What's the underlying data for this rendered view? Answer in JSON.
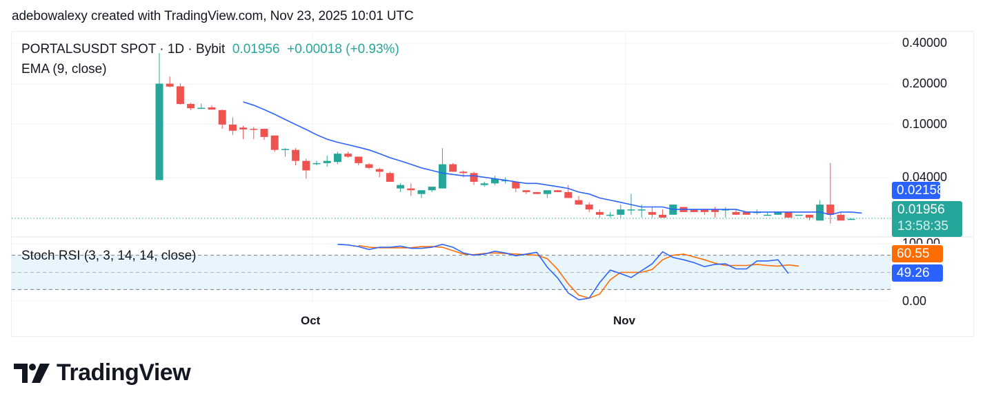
{
  "credit": "adebowalexy created with TradingView.com, Nov 23, 2025 10:01 UTC",
  "legend": {
    "symbol": "PORTALSUSDT SPOT · 1D · Bybit",
    "price": "0.01956",
    "change": "+0.00018 (+0.93%)",
    "ema": "EMA (9, close)",
    "stoch": "Stoch RSI (3, 3, 14, 14, close)"
  },
  "price_axis": [
    "0.40000",
    "0.20000",
    "0.10000",
    "0.04000"
  ],
  "badges": {
    "ema_value": "0.02158",
    "last_price": "0.01956",
    "countdown": "13:58:35",
    "stoch_d": "60.55",
    "stoch_k": "49.26"
  },
  "stoch_axis": [
    "100.00",
    "0.00"
  ],
  "time_axis": [
    "Oct",
    "Nov"
  ],
  "logo": "TradingView",
  "colors": {
    "up": "#26a69a",
    "down": "#ef5350",
    "ema": "#2962ff",
    "stoch_k": "#2962ff",
    "stoch_d": "#ff6d00",
    "band": "#e3f2fd"
  },
  "chart_data": [
    {
      "type": "candlestick",
      "title": "PORTALSUSDT SPOT · 1D · Bybit",
      "scale": "log",
      "ylim": [
        0.017,
        0.45
      ],
      "y_ticks": [
        0.4,
        0.2,
        0.1,
        0.04
      ],
      "x_ticks": [
        "Oct",
        "Nov"
      ],
      "last": 0.01956,
      "change": 0.00018,
      "change_pct": 0.93,
      "candles": [
        {
          "o": 0.0381,
          "h": 0.338,
          "l": 0.0381,
          "c": 0.2
        },
        {
          "o": 0.2,
          "h": 0.226,
          "l": 0.188,
          "c": 0.19
        },
        {
          "o": 0.191,
          "h": 0.201,
          "l": 0.139,
          "c": 0.141
        },
        {
          "o": 0.141,
          "h": 0.144,
          "l": 0.127,
          "c": 0.131
        },
        {
          "o": 0.13,
          "h": 0.142,
          "l": 0.13,
          "c": 0.132
        },
        {
          "o": 0.133,
          "h": 0.138,
          "l": 0.128,
          "c": 0.128
        },
        {
          "o": 0.127,
          "h": 0.128,
          "l": 0.092,
          "c": 0.099
        },
        {
          "o": 0.099,
          "h": 0.112,
          "l": 0.083,
          "c": 0.089
        },
        {
          "o": 0.094,
          "h": 0.097,
          "l": 0.077,
          "c": 0.091
        },
        {
          "o": 0.092,
          "h": 0.095,
          "l": 0.077,
          "c": 0.091
        },
        {
          "o": 0.092,
          "h": 0.092,
          "l": 0.076,
          "c": 0.08
        },
        {
          "o": 0.082,
          "h": 0.082,
          "l": 0.062,
          "c": 0.064
        },
        {
          "o": 0.064,
          "h": 0.066,
          "l": 0.057,
          "c": 0.065
        },
        {
          "o": 0.064,
          "h": 0.066,
          "l": 0.049,
          "c": 0.053
        },
        {
          "o": 0.053,
          "h": 0.055,
          "l": 0.039,
          "c": 0.045
        },
        {
          "o": 0.051,
          "h": 0.053,
          "l": 0.049,
          "c": 0.051
        },
        {
          "o": 0.051,
          "h": 0.058,
          "l": 0.048,
          "c": 0.053
        },
        {
          "o": 0.052,
          "h": 0.062,
          "l": 0.05,
          "c": 0.06
        },
        {
          "o": 0.06,
          "h": 0.062,
          "l": 0.056,
          "c": 0.057
        },
        {
          "o": 0.057,
          "h": 0.057,
          "l": 0.049,
          "c": 0.051
        },
        {
          "o": 0.05,
          "h": 0.051,
          "l": 0.046,
          "c": 0.047
        },
        {
          "o": 0.046,
          "h": 0.047,
          "l": 0.04,
          "c": 0.044
        },
        {
          "o": 0.043,
          "h": 0.044,
          "l": 0.037,
          "c": 0.037
        },
        {
          "o": 0.033,
          "h": 0.036,
          "l": 0.031,
          "c": 0.035
        },
        {
          "o": 0.033,
          "h": 0.036,
          "l": 0.029,
          "c": 0.032
        },
        {
          "o": 0.03,
          "h": 0.032,
          "l": 0.028,
          "c": 0.032
        },
        {
          "o": 0.032,
          "h": 0.033,
          "l": 0.031,
          "c": 0.034
        },
        {
          "o": 0.033,
          "h": 0.066,
          "l": 0.035,
          "c": 0.05
        },
        {
          "o": 0.05,
          "h": 0.051,
          "l": 0.044,
          "c": 0.044
        },
        {
          "o": 0.044,
          "h": 0.045,
          "l": 0.04,
          "c": 0.043
        },
        {
          "o": 0.043,
          "h": 0.044,
          "l": 0.035,
          "c": 0.037
        },
        {
          "o": 0.035,
          "h": 0.037,
          "l": 0.034,
          "c": 0.036
        },
        {
          "o": 0.036,
          "h": 0.041,
          "l": 0.035,
          "c": 0.039
        },
        {
          "o": 0.038,
          "h": 0.04,
          "l": 0.036,
          "c": 0.038
        },
        {
          "o": 0.037,
          "h": 0.037,
          "l": 0.031,
          "c": 0.033
        },
        {
          "o": 0.032,
          "h": 0.032,
          "l": 0.03,
          "c": 0.031
        },
        {
          "o": 0.031,
          "h": 0.031,
          "l": 0.03,
          "c": 0.03
        },
        {
          "o": 0.03,
          "h": 0.032,
          "l": 0.028,
          "c": 0.032
        },
        {
          "o": 0.032,
          "h": 0.032,
          "l": 0.031,
          "c": 0.031
        },
        {
          "o": 0.031,
          "h": 0.035,
          "l": 0.028,
          "c": 0.028
        },
        {
          "o": 0.027,
          "h": 0.029,
          "l": 0.025,
          "c": 0.025
        },
        {
          "o": 0.025,
          "h": 0.026,
          "l": 0.022,
          "c": 0.023
        },
        {
          "o": 0.022,
          "h": 0.023,
          "l": 0.02,
          "c": 0.021
        },
        {
          "o": 0.021,
          "h": 0.022,
          "l": 0.02,
          "c": 0.021
        },
        {
          "o": 0.021,
          "h": 0.025,
          "l": 0.02,
          "c": 0.023
        },
        {
          "o": 0.023,
          "h": 0.03,
          "l": 0.021,
          "c": 0.023
        },
        {
          "o": 0.023,
          "h": 0.025,
          "l": 0.02,
          "c": 0.023
        },
        {
          "o": 0.022,
          "h": 0.024,
          "l": 0.02,
          "c": 0.021
        },
        {
          "o": 0.021,
          "h": 0.023,
          "l": 0.02,
          "c": 0.02
        },
        {
          "o": 0.021,
          "h": 0.025,
          "l": 0.021,
          "c": 0.025
        },
        {
          "o": 0.024,
          "h": 0.024,
          "l": 0.022,
          "c": 0.022
        },
        {
          "o": 0.023,
          "h": 0.023,
          "l": 0.022,
          "c": 0.022
        },
        {
          "o": 0.023,
          "h": 0.023,
          "l": 0.021,
          "c": 0.022
        },
        {
          "o": 0.023,
          "h": 0.024,
          "l": 0.02,
          "c": 0.022
        },
        {
          "o": 0.023,
          "h": 0.024,
          "l": 0.02,
          "c": 0.023
        },
        {
          "o": 0.022,
          "h": 0.023,
          "l": 0.021,
          "c": 0.021
        },
        {
          "o": 0.022,
          "h": 0.022,
          "l": 0.021,
          "c": 0.021
        },
        {
          "o": 0.022,
          "h": 0.023,
          "l": 0.021,
          "c": 0.022
        },
        {
          "o": 0.021,
          "h": 0.022,
          "l": 0.021,
          "c": 0.021
        },
        {
          "o": 0.021,
          "h": 0.022,
          "l": 0.021,
          "c": 0.022
        },
        {
          "o": 0.022,
          "h": 0.022,
          "l": 0.02,
          "c": 0.02
        },
        {
          "o": 0.021,
          "h": 0.021,
          "l": 0.021,
          "c": 0.021
        },
        {
          "o": 0.021,
          "h": 0.021,
          "l": 0.019,
          "c": 0.02
        },
        {
          "o": 0.019,
          "h": 0.027,
          "l": 0.019,
          "c": 0.025
        },
        {
          "o": 0.025,
          "h": 0.051,
          "l": 0.018,
          "c": 0.021
        },
        {
          "o": 0.021,
          "h": 0.022,
          "l": 0.019,
          "c": 0.019
        },
        {
          "o": 0.0195,
          "h": 0.0197,
          "l": 0.0194,
          "c": 0.01956
        }
      ],
      "ema": {
        "name": "EMA (9, close)",
        "last": 0.02158,
        "start_index": 8,
        "values": [
          0.146,
          0.138,
          0.128,
          0.118,
          0.108,
          0.099,
          0.091,
          0.083,
          0.077,
          0.073,
          0.07,
          0.067,
          0.064,
          0.06,
          0.056,
          0.053,
          0.05,
          0.047,
          0.045,
          0.043,
          0.042,
          0.041,
          0.041,
          0.04,
          0.039,
          0.038,
          0.037,
          0.036,
          0.036,
          0.035,
          0.034,
          0.033,
          0.031,
          0.03,
          0.028,
          0.027,
          0.026,
          0.025,
          0.024,
          0.024,
          0.024,
          0.023,
          0.023,
          0.023,
          0.023,
          0.023,
          0.023,
          0.023,
          0.022,
          0.022,
          0.022,
          0.022,
          0.022,
          0.022,
          0.022,
          0.022,
          0.021,
          0.022,
          0.022,
          0.0216
        ]
      }
    },
    {
      "type": "line",
      "title": "Stoch RSI (3, 3, 14, 14, close)",
      "ylim": [
        0,
        100
      ],
      "bands": [
        20,
        50,
        80
      ],
      "series": [
        {
          "name": "K",
          "color": "#2962ff",
          "last": 49.26,
          "start_index": 17,
          "values": [
            99,
            98,
            95,
            90,
            94,
            94,
            96,
            92,
            92,
            94,
            99,
            94,
            84,
            80,
            82,
            87,
            84,
            79,
            82,
            85,
            59,
            40,
            14,
            2,
            5,
            32,
            54,
            48,
            41,
            53,
            65,
            86,
            76,
            72,
            67,
            60,
            64,
            65,
            56,
            56,
            70,
            70,
            72,
            48
          ]
        },
        {
          "name": "D",
          "color": "#ff6d00",
          "last": 60.55,
          "start_index": 19,
          "values": [
            97,
            94,
            93,
            93,
            93,
            93,
            95,
            95,
            94,
            88,
            82,
            81,
            83,
            84,
            83,
            82,
            81,
            80,
            74,
            55,
            30,
            10,
            5,
            12,
            37,
            50,
            50,
            50,
            55,
            72,
            80,
            82,
            77,
            72,
            66,
            62,
            62,
            62,
            64,
            62,
            61,
            63,
            61
          ]
        }
      ]
    }
  ]
}
